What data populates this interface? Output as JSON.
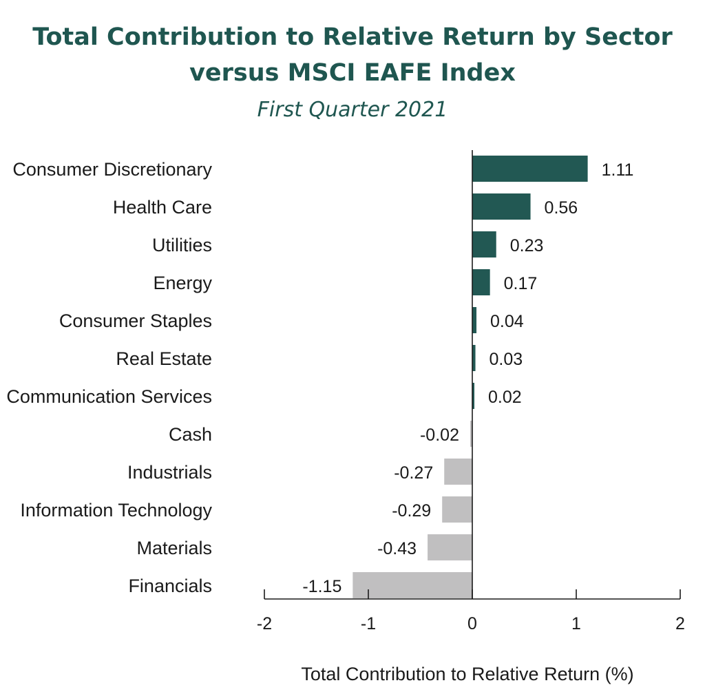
{
  "title": "Total Contribution to Relative Return by Sector versus MSCI EAFE Index",
  "subtitle": "First Quarter 2021",
  "chart_data": {
    "type": "bar",
    "orientation": "horizontal",
    "title": "Total Contribution to Relative Return by Sector versus MSCI EAFE Index",
    "subtitle": "First Quarter 2021",
    "xlabel": "Total Contribution to Relative Return (%)",
    "ylabel": "",
    "xlim": [
      -2,
      2
    ],
    "xticks": [
      "-2",
      "-1",
      "0",
      "1",
      "2"
    ],
    "categories": [
      "Consumer Discretionary",
      "Health Care",
      "Utilities",
      "Energy",
      "Consumer Staples",
      "Real Estate",
      "Communication Services",
      "Cash",
      "Industrials",
      "Information Technology",
      "Materials",
      "Financials"
    ],
    "values": [
      1.11,
      0.56,
      0.23,
      0.17,
      0.04,
      0.03,
      0.02,
      -0.02,
      -0.27,
      -0.29,
      -0.43,
      -1.15
    ],
    "value_labels": [
      "1.11",
      "0.56",
      "0.23",
      "0.17",
      "0.04",
      "0.03",
      "0.02",
      "-0.02",
      "-0.27",
      "-0.29",
      "-0.43",
      "-1.15"
    ],
    "grid": false,
    "legend": "none",
    "colors": {
      "positive": "#225853",
      "negative": "#c0bfc0"
    }
  }
}
